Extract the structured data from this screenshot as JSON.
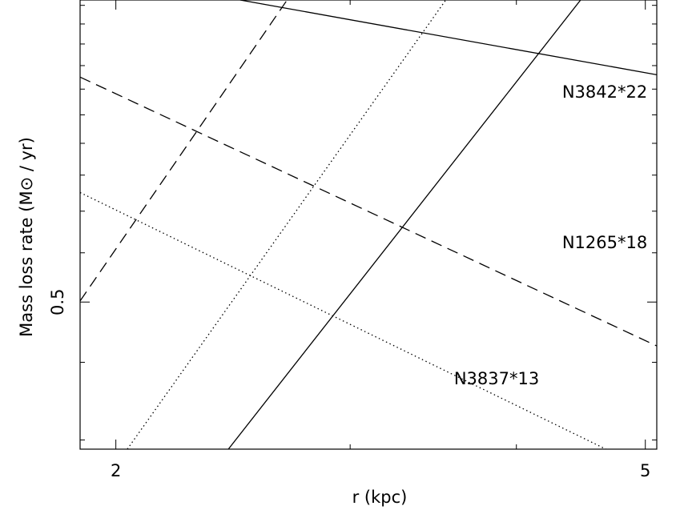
{
  "chart_data": {
    "type": "line",
    "xlabel": "r (kpc)",
    "ylabel": "Mass loss rate (M⊙ / yr)",
    "x_scale": "log",
    "y_scale": "log",
    "xlim": [
      1.88,
      5.1
    ],
    "ylim": [
      0.29,
      1.53
    ],
    "x_ticks": [
      {
        "value": 2,
        "label": "2"
      },
      {
        "value": 5,
        "label": "5"
      }
    ],
    "y_ticks": [
      {
        "value": 0.5,
        "label": "0.5"
      }
    ],
    "y_minor_ticks": [
      0.3,
      0.4,
      0.6,
      0.7,
      0.8,
      0.9,
      1.0,
      1.1,
      1.2,
      1.3,
      1.4,
      1.5
    ],
    "x_minor_ticks": [
      3,
      4
    ],
    "series": [
      {
        "name": "N3842*22",
        "style": "solid",
        "pair": [
          {
            "x": [
              2.48,
              5.1
            ],
            "y": [
              1.53,
              1.16
            ]
          },
          {
            "x": [
              2.43,
              4.47
            ],
            "y": [
              0.29,
              1.53
            ]
          }
        ]
      },
      {
        "name": "N1265*18",
        "style": "dashed",
        "pair": [
          {
            "x": [
              1.88,
              5.1
            ],
            "y": [
              1.15,
              0.425
            ]
          },
          {
            "x": [
              1.88,
              2.69
            ],
            "y": [
              0.502,
              1.53
            ]
          }
        ]
      },
      {
        "name": "N3837*13",
        "style": "dotted",
        "pair": [
          {
            "x": [
              1.88,
              4.67
            ],
            "y": [
              0.75,
              0.29
            ]
          },
          {
            "x": [
              2.04,
              3.54
            ],
            "y": [
              0.29,
              1.53
            ]
          }
        ]
      }
    ]
  }
}
